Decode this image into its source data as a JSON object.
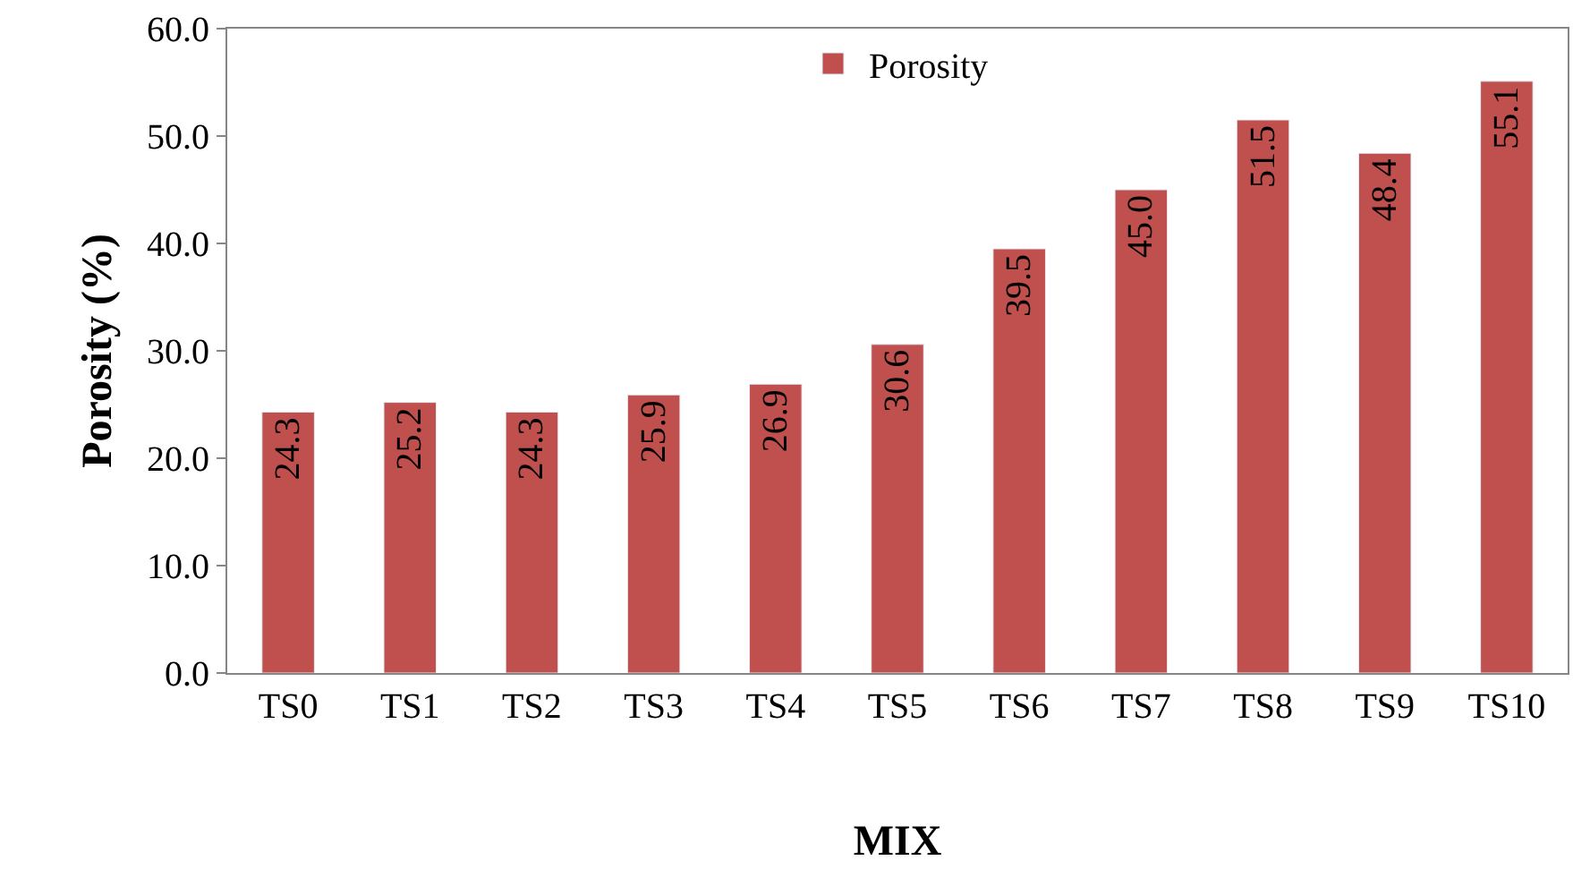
{
  "chart_data": {
    "type": "bar",
    "xlabel": "MIX",
    "ylabel": "Porosity (%)",
    "categories": [
      "TS0",
      "TS1",
      "TS2",
      "TS3",
      "TS4",
      "TS5",
      "TS6",
      "TS7",
      "TS8",
      "TS9",
      "TS10"
    ],
    "series": [
      {
        "name": "Porosity",
        "color": "#c0504d",
        "values": [
          24.3,
          25.2,
          24.3,
          25.9,
          26.9,
          30.6,
          39.5,
          45.0,
          51.5,
          48.4,
          55.1
        ]
      }
    ],
    "ylim": [
      0,
      60
    ],
    "yticks": [
      {
        "value": 0,
        "label": "0.0"
      },
      {
        "value": 10,
        "label": "10.0"
      },
      {
        "value": 20,
        "label": "20.0"
      },
      {
        "value": 30,
        "label": "30.0"
      },
      {
        "value": 40,
        "label": "40.0"
      },
      {
        "value": 50,
        "label": "50.0"
      },
      {
        "value": 60,
        "label": "60.0"
      }
    ],
    "value_labels": [
      "24.3",
      "25.2",
      "24.3",
      "25.9",
      "26.9",
      "30.6",
      "39.5",
      "45.0",
      "51.5",
      "48.4",
      "55.1"
    ],
    "legend": "top"
  }
}
